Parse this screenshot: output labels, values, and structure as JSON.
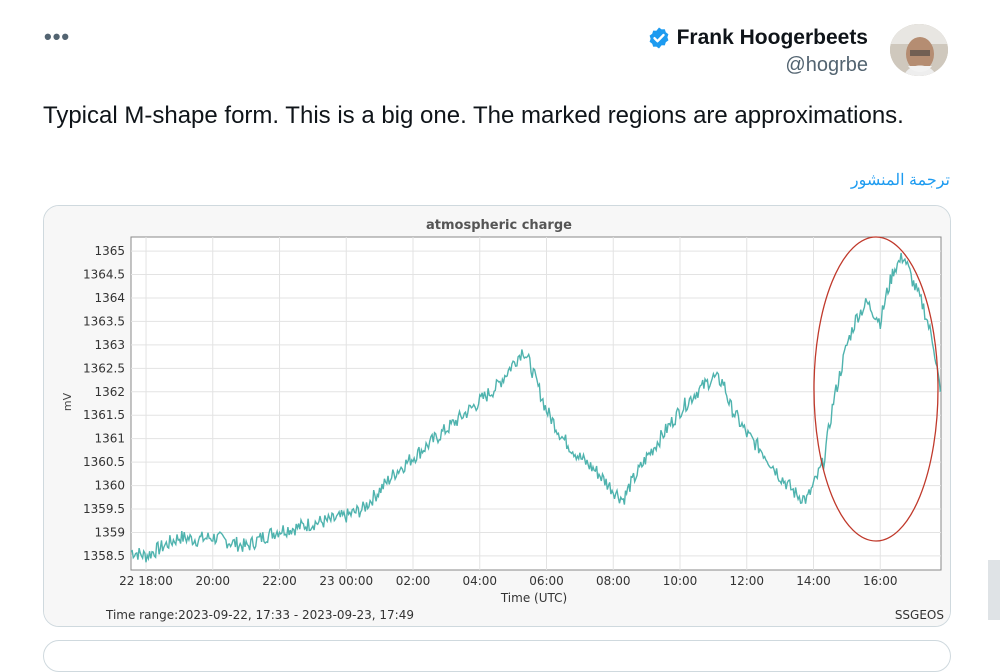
{
  "tweet": {
    "more_label": "•••",
    "author_name": "Frank Hoogerbeets",
    "author_handle": "@hogrbe",
    "text": "Typical M-shape form. This is a big one. The marked regions are approximations.",
    "translate_label": "ترجمة المنشور"
  },
  "colors": {
    "accent": "#1d9bf0",
    "series": "#4fb3ae",
    "ellipse": "#c0392b"
  },
  "icons": {
    "verified": "verified-badge-icon"
  },
  "chart_data": {
    "type": "line",
    "title": "atmospheric charge",
    "xlabel": "Time (UTC)",
    "ylabel": "mV",
    "ylim": [
      1358.2,
      1365.3
    ],
    "xlim": [
      17.55,
      41.82
    ],
    "yticks": [
      "1358.5",
      "1359",
      "1359.5",
      "1360",
      "1360.5",
      "1361",
      "1361.5",
      "1362",
      "1362.5",
      "1363",
      "1363.5",
      "1364",
      "1364.5",
      "1365"
    ],
    "xticks": [
      "22 18:00",
      "20:00",
      "22:00",
      "23 00:00",
      "02:00",
      "04:00",
      "06:00",
      "08:00",
      "10:00",
      "12:00",
      "14:00",
      "16:00"
    ],
    "footer_left": "Time range:2023-09-22, 17:33 - 2023-09-23, 17:49",
    "footer_right": "SSGEOS",
    "annotations": [
      "red ellipse around 14:00–17:49 peak region"
    ],
    "series": [
      {
        "x": [
          17.55,
          18.0,
          18.5,
          19.0,
          19.5,
          20.0,
          20.5,
          21.0,
          21.5,
          22.0,
          22.5,
          23.0,
          23.5,
          24.0,
          24.5,
          25.0,
          25.5,
          26.0,
          26.5,
          27.0,
          27.5,
          28.0,
          28.5,
          29.0,
          29.3,
          29.5,
          30.0,
          30.5,
          31.0,
          31.5,
          32.0,
          32.3,
          32.5,
          33.0,
          33.5,
          34.0,
          34.5,
          35.0,
          35.3,
          35.5,
          36.0,
          36.5,
          37.0,
          37.5,
          37.8,
          38.0,
          38.3,
          38.6,
          39.0,
          39.3,
          39.6,
          40.0,
          40.2,
          40.4,
          40.7,
          41.0,
          41.3,
          41.6,
          41.8
        ],
        "y": [
          1358.6,
          1358.5,
          1358.7,
          1358.9,
          1358.85,
          1358.9,
          1358.8,
          1358.7,
          1358.9,
          1359.05,
          1359.1,
          1359.2,
          1359.25,
          1359.35,
          1359.5,
          1359.9,
          1360.3,
          1360.6,
          1360.9,
          1361.2,
          1361.5,
          1361.8,
          1362.1,
          1362.6,
          1362.9,
          1362.6,
          1361.6,
          1361.0,
          1360.6,
          1360.3,
          1359.9,
          1359.7,
          1360.0,
          1360.6,
          1361.1,
          1361.6,
          1362.0,
          1362.3,
          1362.2,
          1361.7,
          1361.1,
          1360.7,
          1360.2,
          1359.8,
          1359.7,
          1360.0,
          1360.5,
          1361.8,
          1363.0,
          1363.6,
          1363.9,
          1363.5,
          1364.1,
          1364.6,
          1364.9,
          1364.3,
          1363.8,
          1363.0,
          1362.0
        ]
      }
    ]
  }
}
